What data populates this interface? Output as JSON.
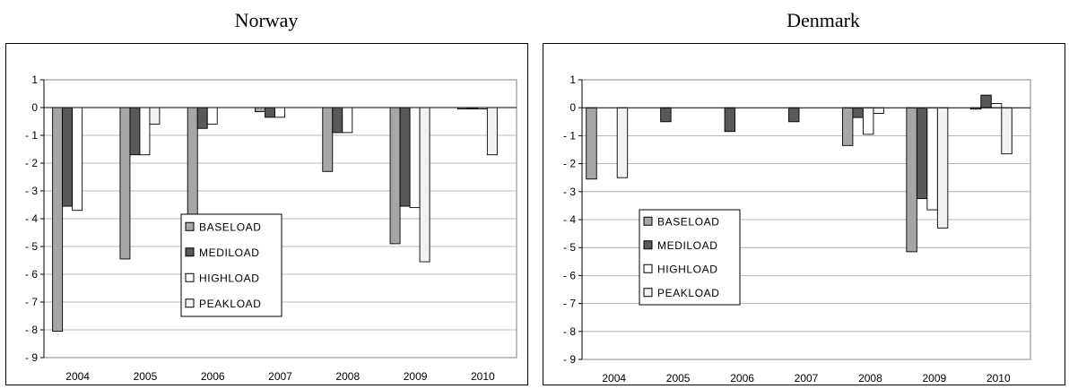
{
  "chart_data": [
    {
      "type": "bar",
      "title": "Norway",
      "categories": [
        "2004",
        "2005",
        "2006",
        "2007",
        "2008",
        "2009",
        "2010"
      ],
      "series": [
        {
          "name": "BASELOAD",
          "color": "#a6a6a6",
          "values": [
            -8.05,
            -5.45,
            -4.3,
            -0.15,
            -2.3,
            -4.9,
            -0.05
          ]
        },
        {
          "name": "MEDILOAD",
          "color": "#595959",
          "values": [
            -3.55,
            -1.7,
            -0.75,
            -0.35,
            -0.9,
            -3.55,
            -0.05
          ]
        },
        {
          "name": "HIGHLOAD",
          "color": "#ffffff",
          "values": [
            -3.7,
            -1.7,
            -0.6,
            -0.35,
            -0.9,
            -3.6,
            -0.05
          ]
        },
        {
          "name": "PEAKLOAD",
          "color": "#f2f2f2",
          "values": [
            null,
            -0.6,
            null,
            null,
            null,
            -5.55,
            -1.7
          ]
        }
      ],
      "ylim": [
        -9,
        1
      ],
      "yticks": [
        1,
        0,
        -1,
        -2,
        -3,
        -4,
        -5,
        -6,
        -7,
        -8,
        -9
      ],
      "grid": true,
      "legend_position": "lower-center"
    },
    {
      "type": "bar",
      "title": "Denmark",
      "categories": [
        "2004",
        "2005",
        "2006",
        "2007",
        "2008",
        "2009",
        "2010"
      ],
      "series": [
        {
          "name": "BASELOAD",
          "color": "#a6a6a6",
          "values": [
            -2.55,
            null,
            null,
            null,
            -1.35,
            -5.15,
            -0.05
          ]
        },
        {
          "name": "MEDILOAD",
          "color": "#595959",
          "values": [
            null,
            -0.5,
            -0.85,
            -0.5,
            -0.35,
            -3.25,
            0.45
          ]
        },
        {
          "name": "HIGHLOAD",
          "color": "#ffffff",
          "values": [
            null,
            null,
            null,
            null,
            -0.95,
            -3.65,
            0.15
          ]
        },
        {
          "name": "PEAKLOAD",
          "color": "#f2f2f2",
          "values": [
            -2.5,
            null,
            null,
            null,
            -0.2,
            -4.3,
            -1.65
          ]
        }
      ],
      "ylim": [
        -9,
        1
      ],
      "yticks": [
        1,
        0,
        -1,
        -2,
        -3,
        -4,
        -5,
        -6,
        -7,
        -8,
        -9
      ],
      "grid": true,
      "legend_position": "left-center"
    }
  ]
}
